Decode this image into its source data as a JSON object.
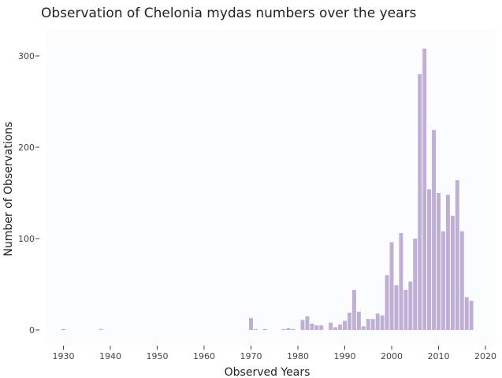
{
  "chart_data": {
    "type": "bar",
    "title": "Observation of Chelonia mydas numbers over the years",
    "xlabel": "Observed Years",
    "ylabel": "Number of Observations",
    "xlim": [
      1925,
      2020
    ],
    "ylim": [
      0,
      320
    ],
    "x_ticks": [
      1930,
      1940,
      1950,
      1960,
      1970,
      1980,
      1990,
      2000,
      2010,
      2020
    ],
    "y_ticks": [
      0,
      100,
      200,
      300
    ],
    "grid": false,
    "legend": "none",
    "colors": {
      "bar": "#bfaed6",
      "plot_bg": "#fbfcfd"
    },
    "x": [
      1930,
      1938,
      1970,
      1971,
      1973,
      1977,
      1978,
      1979,
      1981,
      1982,
      1983,
      1984,
      1985,
      1987,
      1988,
      1989,
      1990,
      1991,
      1992,
      1993,
      1994,
      1995,
      1996,
      1997,
      1998,
      1999,
      2000,
      2001,
      2002,
      2003,
      2004,
      2005,
      2006,
      2007,
      2008,
      2009,
      2010,
      2011,
      2012,
      2013,
      2014,
      2015,
      2016,
      2017
    ],
    "values": [
      1,
      1,
      13,
      1,
      1,
      1,
      2,
      1,
      11,
      15,
      7,
      5,
      5,
      8,
      3,
      6,
      10,
      19,
      44,
      20,
      4,
      12,
      12,
      18,
      16,
      60,
      96,
      49,
      106,
      44,
      53,
      100,
      280,
      308,
      154,
      219,
      150,
      108,
      148,
      125,
      164,
      108,
      36,
      32
    ]
  }
}
